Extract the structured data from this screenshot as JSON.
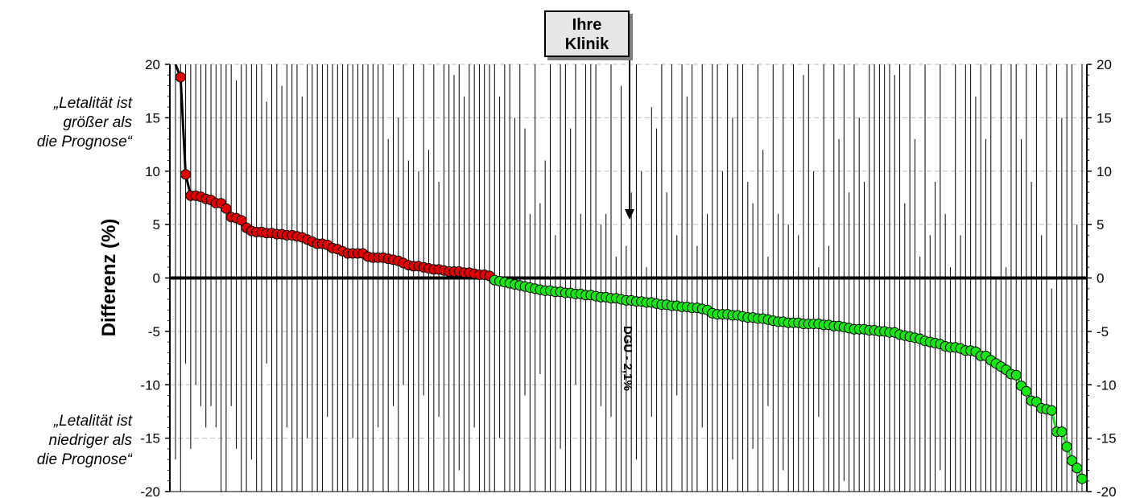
{
  "chart_data": {
    "type": "scatter",
    "ylabel": "Differenz (%)",
    "ylim": [
      -20,
      20
    ],
    "yticks": [
      -20,
      -15,
      -10,
      -5,
      0,
      5,
      10,
      15,
      20
    ],
    "grid": true,
    "reference_label": "DGU  - 2,1%",
    "callout": {
      "line1": "Ihre",
      "line2": "Klinik",
      "hospital_index": 82
    },
    "colors": {
      "above": "#e00000",
      "below": "#19e619",
      "line_above": "#000000",
      "line_below": "#19e619"
    },
    "values": [
      20,
      18.8,
      9.7,
      7.7,
      7.7,
      7.6,
      7.4,
      7.3,
      7.0,
      7.0,
      6.5,
      5.7,
      5.6,
      5.4,
      4.7,
      4.4,
      4.3,
      4.3,
      4.2,
      4.2,
      4.1,
      4.1,
      4.0,
      4.0,
      3.9,
      3.8,
      3.6,
      3.4,
      3.2,
      3.2,
      3.1,
      2.8,
      2.7,
      2.5,
      2.3,
      2.3,
      2.3,
      2.3,
      2.0,
      1.9,
      1.9,
      1.9,
      1.8,
      1.7,
      1.6,
      1.4,
      1.2,
      1.1,
      1.1,
      1.0,
      0.9,
      0.8,
      0.8,
      0.7,
      0.6,
      0.6,
      0.6,
      0.5,
      0.5,
      0.4,
      0.3,
      0.3,
      0.2,
      -0.2,
      -0.3,
      -0.4,
      -0.5,
      -0.6,
      -0.7,
      -0.8,
      -0.9,
      -1.0,
      -1.1,
      -1.2,
      -1.2,
      -1.3,
      -1.3,
      -1.4,
      -1.4,
      -1.5,
      -1.5,
      -1.6,
      -1.6,
      -1.7,
      -1.8,
      -1.8,
      -1.9,
      -1.9,
      -2.0,
      -2.1,
      -2.1,
      -2.2,
      -2.2,
      -2.3,
      -2.3,
      -2.4,
      -2.5,
      -2.5,
      -2.6,
      -2.6,
      -2.7,
      -2.7,
      -2.8,
      -2.8,
      -2.9,
      -3.0,
      -3.3,
      -3.4,
      -3.4,
      -3.4,
      -3.5,
      -3.5,
      -3.6,
      -3.7,
      -3.7,
      -3.8,
      -3.8,
      -3.9,
      -4.0,
      -4.1,
      -4.1,
      -4.2,
      -4.2,
      -4.2,
      -4.3,
      -4.3,
      -4.3,
      -4.3,
      -4.4,
      -4.4,
      -4.5,
      -4.5,
      -4.6,
      -4.7,
      -4.8,
      -4.8,
      -4.8,
      -4.9,
      -4.9,
      -5.0,
      -5.0,
      -5.1,
      -5.1,
      -5.3,
      -5.4,
      -5.5,
      -5.6,
      -5.7,
      -5.9,
      -6.0,
      -6.1,
      -6.2,
      -6.4,
      -6.5,
      -6.5,
      -6.6,
      -6.8,
      -6.8,
      -6.9,
      -7.3,
      -7.3,
      -7.7,
      -8.0,
      -8.3,
      -8.6,
      -9.0,
      -9.1,
      -10.1,
      -10.6,
      -11.5,
      -11.6,
      -12.2,
      -12.3,
      -12.4,
      -14.4,
      -14.4,
      -15.8,
      -17.1,
      -17.8,
      -18.8
    ],
    "ci_upper": [
      20,
      20,
      20,
      20,
      20,
      20,
      20,
      20,
      20,
      20,
      20,
      20,
      18.5,
      20,
      20,
      20,
      20,
      20,
      16.5,
      20,
      20,
      18,
      20,
      20,
      20,
      17,
      20,
      20,
      20,
      20,
      20,
      20,
      20,
      20,
      20,
      20,
      20,
      20,
      20,
      20,
      20,
      20,
      13,
      20,
      15,
      20,
      11,
      20,
      10,
      20,
      12,
      20,
      9,
      20,
      20,
      19,
      20,
      17,
      20,
      20,
      20,
      20,
      20,
      20,
      17,
      20,
      20,
      15,
      20,
      14,
      6,
      20,
      7,
      11,
      20,
      4,
      20,
      20,
      14,
      20,
      6,
      20,
      20,
      20,
      5,
      6,
      20,
      2,
      18,
      3,
      8,
      20,
      10,
      1,
      16,
      14,
      20,
      8,
      20,
      4,
      20,
      17,
      20,
      3,
      20,
      6,
      20,
      20,
      10,
      20,
      15,
      20,
      20,
      9,
      7,
      20,
      12,
      2,
      20,
      6,
      20,
      5,
      20,
      4,
      19,
      20,
      10,
      1,
      20,
      3,
      20,
      13,
      20,
      8,
      20,
      15,
      9,
      20,
      20,
      20,
      20,
      20,
      19,
      20,
      7,
      20,
      13,
      2,
      20,
      4,
      9,
      20,
      6,
      1,
      20,
      4,
      20,
      20,
      17,
      20,
      13,
      20,
      0,
      20,
      1,
      20,
      20,
      13,
      20,
      9,
      20,
      4,
      20,
      -1,
      20,
      15,
      20,
      20,
      5,
      20,
      20,
      0
    ],
    "ci_lower": [
      -17,
      -20,
      -8,
      -16,
      -10,
      -12,
      -14,
      -12,
      -14,
      -20,
      -20,
      -12,
      -16,
      -20,
      -20,
      -17,
      -20,
      -20,
      -8,
      -20,
      -20,
      -20,
      -14,
      -20,
      -20,
      -20,
      -15,
      -20,
      -20,
      -20,
      -13,
      -20,
      -20,
      -20,
      -20,
      -15,
      -20,
      -20,
      -20,
      -20,
      -14,
      -20,
      -20,
      -12,
      -20,
      -10,
      -20,
      -20,
      -20,
      -11,
      -20,
      -20,
      -13,
      -20,
      -20,
      -20,
      -18,
      -20,
      -20,
      -14,
      -20,
      -20,
      -20,
      -20,
      -15,
      -20,
      -20,
      -20,
      -20,
      -11,
      -20,
      -20,
      -9,
      -20,
      -20,
      -20,
      -16,
      -20,
      -20,
      -10,
      -20,
      -20,
      -20,
      -20,
      -12,
      -20,
      -13,
      -20,
      -20,
      -20,
      -20,
      -17,
      -20,
      -20,
      -13,
      -20,
      -20,
      -20,
      -20,
      -11,
      -20,
      -20,
      -20,
      -20,
      -14,
      -20,
      -20,
      -20,
      -20,
      -20,
      -17,
      -20,
      -20,
      -20,
      -16,
      -20,
      -20,
      -12,
      -20,
      -20,
      -18,
      -20,
      -20,
      -20,
      -20,
      -20,
      -20,
      -13,
      -20,
      -20,
      -20,
      -20,
      -19,
      -20,
      -20,
      -20,
      -20,
      -20,
      -20,
      -20,
      -20,
      -20,
      -20,
      -20,
      -20,
      -20,
      -20,
      -20,
      -20,
      -20,
      -20,
      -18,
      -20,
      -20,
      -20,
      -20,
      -20,
      -20,
      -20,
      -20,
      -20,
      -20,
      -20,
      -20,
      -20,
      -20,
      -20,
      -20,
      -20,
      -20,
      -20,
      -20,
      -20,
      -20,
      -20,
      -20,
      -20,
      -20,
      -20,
      -20,
      -20,
      -20,
      -20,
      -20,
      -20,
      -20
    ]
  },
  "annotations": {
    "top_line1": "„Letalität ist",
    "top_line2": "größer als",
    "top_line3": "die Prognose“",
    "bottom_line1": "„Letalität ist",
    "bottom_line2": "niedriger als",
    "bottom_line3": "die Prognose“"
  }
}
